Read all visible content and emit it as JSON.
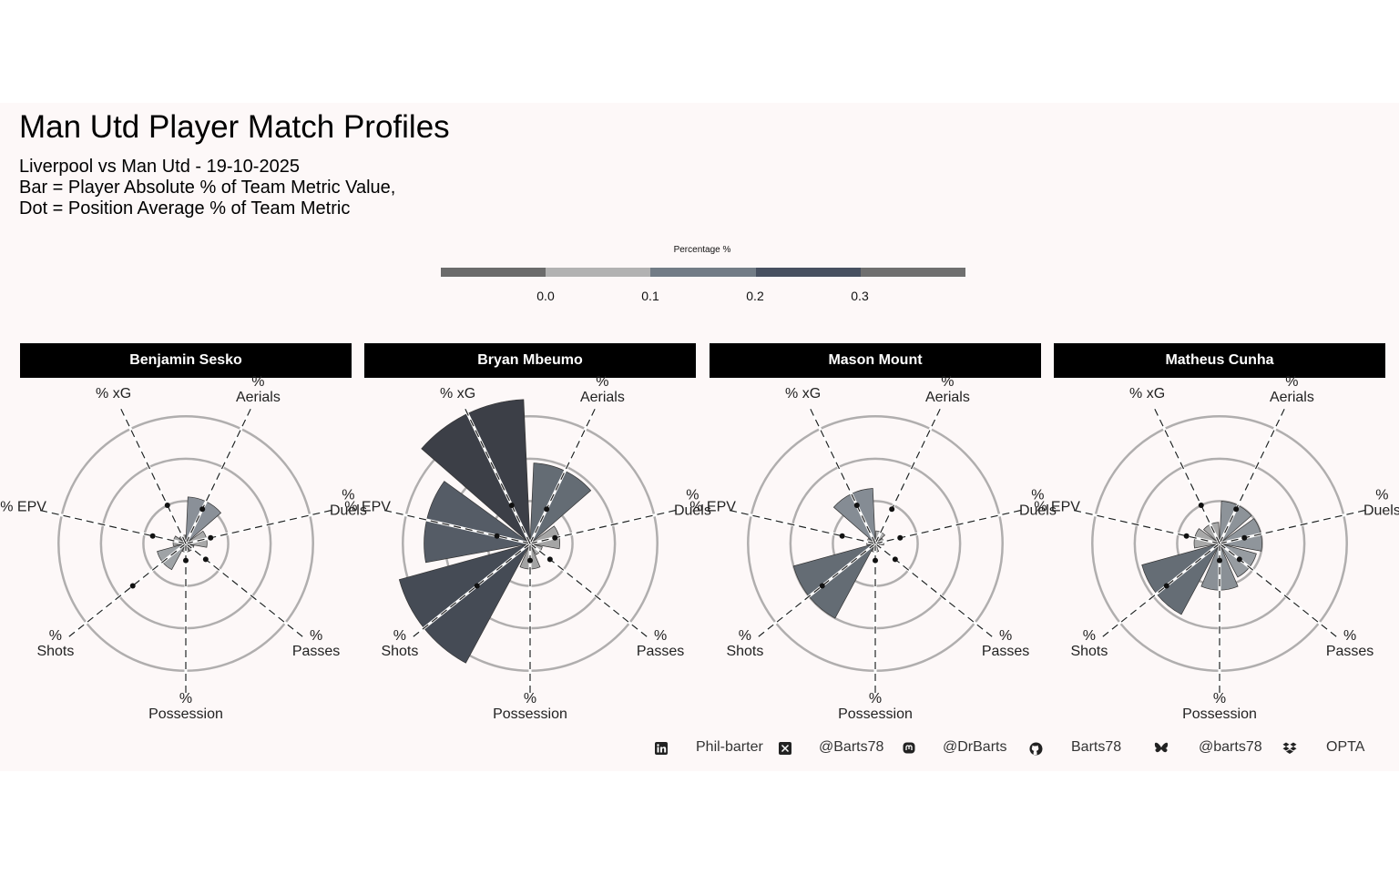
{
  "title": "Man Utd Player Match Profiles",
  "subtitle_lines": [
    "Liverpool vs Man Utd - 19-10-2025",
    "Bar = Player Absolute % of Team Metric Value,",
    "Dot = Position Average % of Team Metric"
  ],
  "legend": {
    "title": "Percentage %",
    "ticks": [
      "0.0",
      "0.1",
      "0.2",
      "0.3"
    ],
    "colors": [
      "#6b6b6b",
      "#b2b2b2",
      "#727c86",
      "#475060",
      "#6f6f6f"
    ]
  },
  "footer": [
    {
      "icon": "linkedin-icon",
      "label": "Phil-barter"
    },
    {
      "icon": "x-icon",
      "label": "@Barts78"
    },
    {
      "icon": "mastodon-icon",
      "label": "@DrBarts"
    },
    {
      "icon": "github-icon",
      "label": "Barts78"
    },
    {
      "icon": "bluesky-icon",
      "label": "@barts78"
    },
    {
      "icon": "dropbox-icon",
      "label": "OPTA"
    }
  ],
  "chart_data": {
    "type": "polar-bar",
    "axis_max": 0.35,
    "gridlines": [
      0.1,
      0.2,
      0.3
    ],
    "categories": [
      "% Aerials",
      "% Duels",
      "% Passes",
      "% Possession",
      "% Shots",
      "% EPV",
      "% xG"
    ],
    "players": [
      {
        "name": "Benjamin Sesko",
        "values": [
          0.11,
          0.05,
          0.02,
          0.02,
          0.07,
          0.03,
          0.02
        ],
        "colors": [
          "#8a9098",
          "#a9a9a9",
          "#b1b1b1",
          "#b0b0b0",
          "#9fa3a6",
          "#a7a7a7",
          "#a9a9a9"
        ],
        "position_avg": [
          0.09,
          0.06,
          0.06,
          0.04,
          0.16,
          0.08,
          0.1
        ]
      },
      {
        "name": "Bryan Mbeumo",
        "values": [
          0.19,
          0.07,
          0.03,
          0.06,
          0.32,
          0.25,
          0.34
        ],
        "colors": [
          "#646c74",
          "#a5a5a5",
          "#b0b0b0",
          "#a3a3a3",
          "#454b55",
          "#555c66",
          "#3c3f47"
        ],
        "position_avg": [
          0.09,
          0.06,
          0.06,
          0.04,
          0.16,
          0.08,
          0.1
        ]
      },
      {
        "name": "Mason Mount",
        "values": [
          0.03,
          0.02,
          0.01,
          0.02,
          0.2,
          0.02,
          0.13
        ],
        "colors": [
          "#b0b0b0",
          "#b1b1b1",
          "#b2b2b2",
          "#b0b0b0",
          "#646c74",
          "#b0b0b0",
          "#858c94"
        ],
        "position_avg": [
          0.09,
          0.06,
          0.06,
          0.04,
          0.16,
          0.08,
          0.1
        ]
      },
      {
        "name": "Matheus Cunha",
        "values": [
          0.1,
          0.1,
          0.09,
          0.11,
          0.19,
          0.06,
          0.05
        ],
        "colors": [
          "#8d9399",
          "#8f959b",
          "#979ca1",
          "#8a9096",
          "#656d75",
          "#a8a8a8",
          "#a9a9a9"
        ],
        "position_avg": [
          0.09,
          0.06,
          0.06,
          0.04,
          0.16,
          0.08,
          0.1
        ]
      }
    ]
  }
}
